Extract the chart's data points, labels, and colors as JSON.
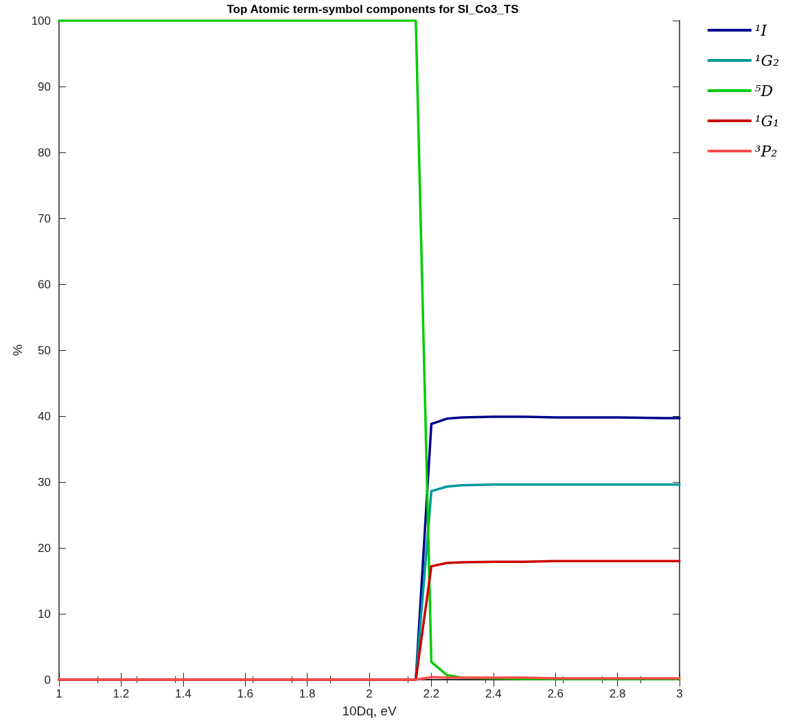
{
  "chart_data": {
    "type": "line",
    "title": "Top Atomic term-symbol components for SI_Co3_TS",
    "xlabel": "10Dq, eV",
    "ylabel": "%",
    "x": [
      1,
      2.15,
      2.2,
      2.25,
      2.3,
      2.4,
      2.5,
      2.6,
      2.8,
      2.95,
      3
    ],
    "series": [
      {
        "name": "¹I",
        "color": "#00008b",
        "values": [
          0,
          0,
          38.8,
          39.6,
          39.8,
          39.9,
          39.9,
          39.8,
          39.8,
          39.7,
          39.7
        ]
      },
      {
        "name": "¹G₂",
        "color": "#009999",
        "values": [
          0,
          0,
          28.6,
          29.3,
          29.5,
          29.6,
          29.6,
          29.6,
          29.6,
          29.6,
          29.6
        ]
      },
      {
        "name": "⁵D",
        "color": "#00cc00",
        "values": [
          100,
          100,
          2.7,
          0.7,
          0.3,
          0.2,
          0.1,
          0.1,
          0.1,
          0.1,
          0.1
        ]
      },
      {
        "name": "¹G₁",
        "color": "#cc0000",
        "values": [
          0,
          0,
          17.2,
          17.7,
          17.8,
          17.9,
          17.9,
          18,
          18,
          18,
          18
        ]
      },
      {
        "name": "³P₂",
        "color": "#ff4c4c",
        "values": [
          0,
          0,
          0.4,
          0.3,
          0.3,
          0.3,
          0.3,
          0.2,
          0.2,
          0.2,
          0.2
        ]
      }
    ],
    "xlim": [
      1,
      3
    ],
    "xticks": [
      1,
      1.2,
      1.4,
      1.6,
      1.8,
      2,
      2.2,
      2.4,
      2.6,
      2.8,
      3
    ],
    "ylim": [
      0,
      100
    ],
    "yticks": [
      0,
      10,
      20,
      30,
      40,
      50,
      60,
      70,
      80,
      90,
      100
    ],
    "grid": false,
    "legend": "top right",
    "marker": "none",
    "line_style": "solid"
  }
}
